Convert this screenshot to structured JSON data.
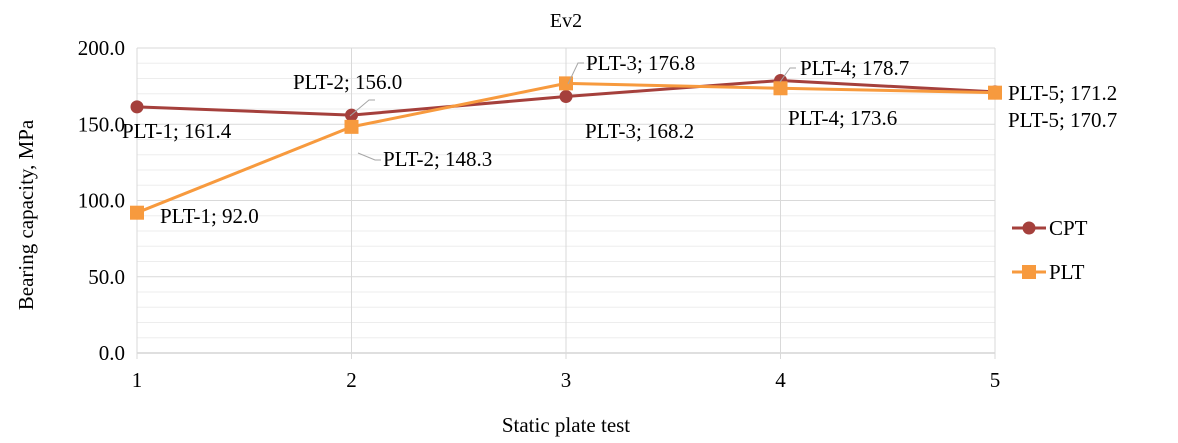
{
  "chart_data": {
    "type": "line",
    "title": "Ev2",
    "xlabel": "Static plate test",
    "ylabel": "Bearing capacity, MPa",
    "categories": [
      "1",
      "2",
      "3",
      "4",
      "5"
    ],
    "ylim": [
      0,
      200
    ],
    "yticks": [
      "0.0",
      "50.0",
      "100.0",
      "150.0",
      "200.0"
    ],
    "grid": "major-and-minor-horizontal, major-vertical",
    "legend_position": "right",
    "series": [
      {
        "name": "CPT",
        "color": "#A5403C",
        "marker": "circle",
        "values": [
          161.4,
          156.0,
          168.2,
          178.7,
          171.2
        ],
        "labels": [
          "PLT-1; 161.4",
          "PLT-2; 156.0",
          "PLT-3; 168.2",
          "PLT-4; 178.7",
          "PLT-5; 171.2"
        ]
      },
      {
        "name": "PLT",
        "color": "#F79A3E",
        "marker": "square",
        "values": [
          92.0,
          148.3,
          176.8,
          173.6,
          170.7
        ],
        "labels": [
          "PLT-1; 92.0",
          "PLT-2; 148.3",
          "PLT-3; 176.8",
          "PLT-4; 173.6",
          "PLT-5; 170.7"
        ]
      }
    ]
  }
}
